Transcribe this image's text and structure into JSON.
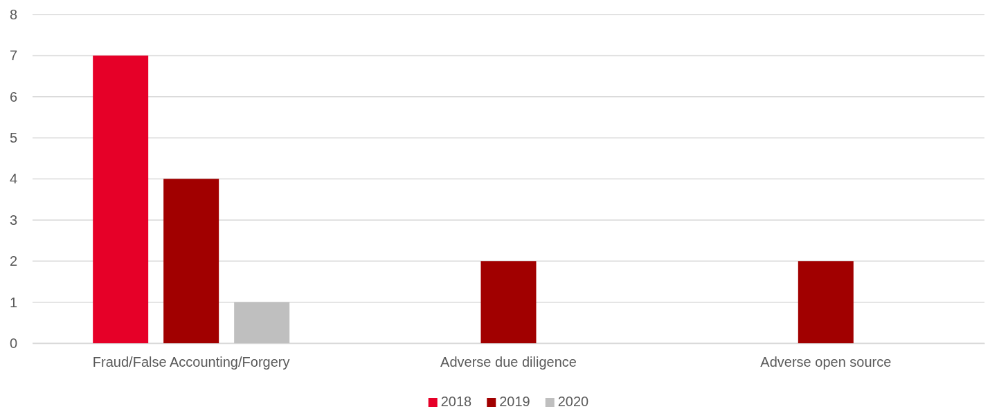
{
  "chart_data": {
    "type": "bar",
    "categories": [
      "Fraud/False Accounting/Forgery",
      "Adverse due diligence",
      "Adverse open source"
    ],
    "series": [
      {
        "name": "2018",
        "color": "#e60028",
        "values": [
          7,
          0,
          0
        ]
      },
      {
        "name": "2019",
        "color": "#a10000",
        "values": [
          4,
          2,
          2
        ]
      },
      {
        "name": "2020",
        "color": "#bfbfbf",
        "values": [
          1,
          0,
          0
        ]
      }
    ],
    "ylim": [
      0,
      8
    ],
    "yticks": [
      0,
      1,
      2,
      3,
      4,
      5,
      6,
      7,
      8
    ],
    "grid": "y",
    "legend": "bottom"
  }
}
